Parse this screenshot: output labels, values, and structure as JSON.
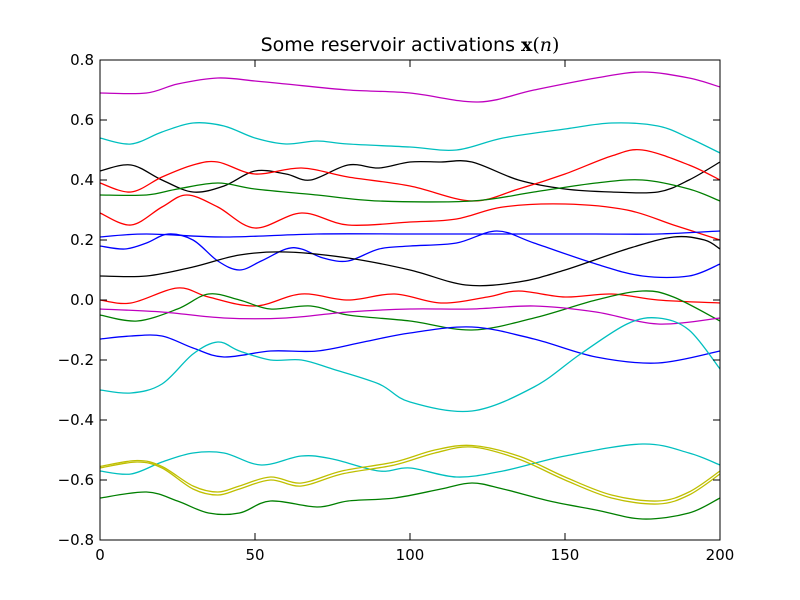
{
  "chart_data": {
    "type": "line",
    "title": "Some reservoir activations",
    "title_math": {
      "bold_var": "x",
      "open": "(",
      "arg": "n",
      "close": ")"
    },
    "xlabel": "",
    "ylabel": "",
    "xlim": [
      0,
      200
    ],
    "ylim": [
      -0.8,
      0.8
    ],
    "xticks": [
      0,
      50,
      100,
      150,
      200
    ],
    "yticks": [
      -0.8,
      -0.6,
      -0.4,
      -0.2,
      0.0,
      0.2,
      0.4,
      0.6,
      0.8
    ],
    "ytick_labels": [
      "−0.8",
      "−0.6",
      "−0.4",
      "−0.2",
      "0.0",
      "0.2",
      "0.4",
      "0.6",
      "0.8"
    ],
    "xtick_labels": [
      "0",
      "50",
      "100",
      "150",
      "200"
    ],
    "grid": false,
    "legend": "none",
    "series": [
      {
        "color": "#bf00bf",
        "points": [
          [
            0,
            0.69
          ],
          [
            15,
            0.69
          ],
          [
            25,
            0.72
          ],
          [
            38,
            0.74
          ],
          [
            50,
            0.73
          ],
          [
            60,
            0.72
          ],
          [
            80,
            0.7
          ],
          [
            100,
            0.69
          ],
          [
            122,
            0.66
          ],
          [
            140,
            0.7
          ],
          [
            160,
            0.74
          ],
          [
            175,
            0.76
          ],
          [
            190,
            0.74
          ],
          [
            200,
            0.71
          ]
        ]
      },
      {
        "color": "#00bfbf",
        "points": [
          [
            0,
            0.54
          ],
          [
            10,
            0.52
          ],
          [
            20,
            0.56
          ],
          [
            30,
            0.59
          ],
          [
            40,
            0.58
          ],
          [
            50,
            0.54
          ],
          [
            60,
            0.52
          ],
          [
            70,
            0.53
          ],
          [
            80,
            0.52
          ],
          [
            100,
            0.51
          ],
          [
            115,
            0.5
          ],
          [
            130,
            0.54
          ],
          [
            150,
            0.57
          ],
          [
            165,
            0.59
          ],
          [
            180,
            0.58
          ],
          [
            190,
            0.54
          ],
          [
            200,
            0.49
          ]
        ]
      },
      {
        "color": "#000000",
        "points": [
          [
            0,
            0.43
          ],
          [
            10,
            0.45
          ],
          [
            20,
            0.4
          ],
          [
            30,
            0.36
          ],
          [
            40,
            0.38
          ],
          [
            50,
            0.43
          ],
          [
            60,
            0.42
          ],
          [
            68,
            0.4
          ],
          [
            80,
            0.45
          ],
          [
            90,
            0.44
          ],
          [
            100,
            0.46
          ],
          [
            110,
            0.46
          ],
          [
            120,
            0.46
          ],
          [
            135,
            0.4
          ],
          [
            150,
            0.37
          ],
          [
            165,
            0.36
          ],
          [
            180,
            0.36
          ],
          [
            190,
            0.4
          ],
          [
            200,
            0.46
          ]
        ]
      },
      {
        "color": "#ff0000",
        "points": [
          [
            0,
            0.39
          ],
          [
            10,
            0.36
          ],
          [
            20,
            0.41
          ],
          [
            30,
            0.45
          ],
          [
            38,
            0.46
          ],
          [
            50,
            0.42
          ],
          [
            65,
            0.44
          ],
          [
            80,
            0.41
          ],
          [
            100,
            0.38
          ],
          [
            120,
            0.33
          ],
          [
            135,
            0.37
          ],
          [
            150,
            0.42
          ],
          [
            165,
            0.48
          ],
          [
            175,
            0.5
          ],
          [
            190,
            0.45
          ],
          [
            200,
            0.4
          ]
        ]
      },
      {
        "color": "#007f00",
        "points": [
          [
            0,
            0.35
          ],
          [
            15,
            0.35
          ],
          [
            25,
            0.37
          ],
          [
            38,
            0.39
          ],
          [
            50,
            0.37
          ],
          [
            70,
            0.35
          ],
          [
            90,
            0.33
          ],
          [
            120,
            0.33
          ],
          [
            140,
            0.36
          ],
          [
            160,
            0.39
          ],
          [
            175,
            0.4
          ],
          [
            190,
            0.37
          ],
          [
            200,
            0.33
          ]
        ]
      },
      {
        "color": "#ff0000",
        "points": [
          [
            0,
            0.29
          ],
          [
            10,
            0.25
          ],
          [
            20,
            0.31
          ],
          [
            28,
            0.35
          ],
          [
            38,
            0.31
          ],
          [
            50,
            0.24
          ],
          [
            65,
            0.29
          ],
          [
            80,
            0.25
          ],
          [
            100,
            0.26
          ],
          [
            115,
            0.27
          ],
          [
            130,
            0.31
          ],
          [
            150,
            0.32
          ],
          [
            170,
            0.3
          ],
          [
            185,
            0.25
          ],
          [
            200,
            0.2
          ]
        ]
      },
      {
        "color": "#0000ff",
        "points": [
          [
            0,
            0.21
          ],
          [
            15,
            0.22
          ],
          [
            40,
            0.21
          ],
          [
            70,
            0.22
          ],
          [
            100,
            0.22
          ],
          [
            130,
            0.22
          ],
          [
            160,
            0.22
          ],
          [
            180,
            0.22
          ],
          [
            200,
            0.23
          ]
        ]
      },
      {
        "color": "#0000ff",
        "points": [
          [
            0,
            0.18
          ],
          [
            8,
            0.17
          ],
          [
            15,
            0.19
          ],
          [
            22,
            0.22
          ],
          [
            30,
            0.2
          ],
          [
            38,
            0.13
          ],
          [
            45,
            0.1
          ],
          [
            52,
            0.13
          ],
          [
            60,
            0.17
          ],
          [
            65,
            0.17
          ],
          [
            72,
            0.14
          ],
          [
            80,
            0.13
          ],
          [
            90,
            0.17
          ],
          [
            100,
            0.18
          ],
          [
            115,
            0.19
          ],
          [
            128,
            0.23
          ],
          [
            140,
            0.19
          ],
          [
            160,
            0.12
          ],
          [
            175,
            0.08
          ],
          [
            190,
            0.08
          ],
          [
            200,
            0.12
          ]
        ]
      },
      {
        "color": "#000000",
        "points": [
          [
            0,
            0.08
          ],
          [
            15,
            0.08
          ],
          [
            30,
            0.11
          ],
          [
            45,
            0.15
          ],
          [
            60,
            0.16
          ],
          [
            80,
            0.14
          ],
          [
            100,
            0.1
          ],
          [
            118,
            0.05
          ],
          [
            135,
            0.06
          ],
          [
            150,
            0.1
          ],
          [
            170,
            0.17
          ],
          [
            185,
            0.21
          ],
          [
            195,
            0.2
          ],
          [
            200,
            0.17
          ]
        ]
      },
      {
        "color": "#ff0000",
        "points": [
          [
            0,
            0.0
          ],
          [
            10,
            -0.01
          ],
          [
            25,
            0.04
          ],
          [
            35,
            0.01
          ],
          [
            50,
            -0.02
          ],
          [
            65,
            0.02
          ],
          [
            80,
            0.0
          ],
          [
            95,
            0.02
          ],
          [
            110,
            -0.01
          ],
          [
            125,
            0.01
          ],
          [
            135,
            0.03
          ],
          [
            150,
            0.01
          ],
          [
            165,
            0.02
          ],
          [
            180,
            0.0
          ],
          [
            200,
            -0.01
          ]
        ]
      },
      {
        "color": "#007f00",
        "points": [
          [
            0,
            -0.05
          ],
          [
            12,
            -0.07
          ],
          [
            25,
            -0.03
          ],
          [
            35,
            0.02
          ],
          [
            45,
            0.0
          ],
          [
            55,
            -0.03
          ],
          [
            68,
            -0.02
          ],
          [
            80,
            -0.05
          ],
          [
            100,
            -0.07
          ],
          [
            120,
            -0.1
          ],
          [
            140,
            -0.06
          ],
          [
            160,
            0.0
          ],
          [
            175,
            0.03
          ],
          [
            185,
            0.01
          ],
          [
            200,
            -0.07
          ]
        ]
      },
      {
        "color": "#bf00bf",
        "points": [
          [
            0,
            -0.03
          ],
          [
            20,
            -0.04
          ],
          [
            40,
            -0.06
          ],
          [
            60,
            -0.06
          ],
          [
            80,
            -0.04
          ],
          [
            100,
            -0.03
          ],
          [
            120,
            -0.03
          ],
          [
            140,
            -0.02
          ],
          [
            160,
            -0.04
          ],
          [
            180,
            -0.08
          ],
          [
            200,
            -0.06
          ]
        ]
      },
      {
        "color": "#0000ff",
        "points": [
          [
            0,
            -0.13
          ],
          [
            10,
            -0.12
          ],
          [
            20,
            -0.12
          ],
          [
            30,
            -0.16
          ],
          [
            40,
            -0.19
          ],
          [
            55,
            -0.17
          ],
          [
            70,
            -0.17
          ],
          [
            85,
            -0.14
          ],
          [
            100,
            -0.11
          ],
          [
            120,
            -0.09
          ],
          [
            140,
            -0.13
          ],
          [
            160,
            -0.19
          ],
          [
            180,
            -0.21
          ],
          [
            200,
            -0.17
          ]
        ]
      },
      {
        "color": "#00bfbf",
        "points": [
          [
            0,
            -0.3
          ],
          [
            10,
            -0.31
          ],
          [
            20,
            -0.28
          ],
          [
            30,
            -0.18
          ],
          [
            38,
            -0.14
          ],
          [
            45,
            -0.17
          ],
          [
            55,
            -0.2
          ],
          [
            65,
            -0.2
          ],
          [
            75,
            -0.23
          ],
          [
            90,
            -0.28
          ],
          [
            100,
            -0.34
          ],
          [
            120,
            -0.37
          ],
          [
            140,
            -0.29
          ],
          [
            155,
            -0.18
          ],
          [
            170,
            -0.08
          ],
          [
            180,
            -0.06
          ],
          [
            190,
            -0.1
          ],
          [
            200,
            -0.23
          ]
        ]
      },
      {
        "color": "#00bfbf",
        "points": [
          [
            0,
            -0.57
          ],
          [
            10,
            -0.58
          ],
          [
            20,
            -0.54
          ],
          [
            30,
            -0.51
          ],
          [
            40,
            -0.51
          ],
          [
            52,
            -0.55
          ],
          [
            65,
            -0.52
          ],
          [
            75,
            -0.53
          ],
          [
            90,
            -0.57
          ],
          [
            100,
            -0.56
          ],
          [
            115,
            -0.59
          ],
          [
            130,
            -0.57
          ],
          [
            150,
            -0.52
          ],
          [
            175,
            -0.48
          ],
          [
            190,
            -0.51
          ],
          [
            200,
            -0.55
          ]
        ]
      },
      {
        "color": "#bfbf00",
        "points": [
          [
            0,
            -0.56
          ],
          [
            12,
            -0.54
          ],
          [
            20,
            -0.56
          ],
          [
            30,
            -0.63
          ],
          [
            38,
            -0.65
          ],
          [
            45,
            -0.63
          ],
          [
            55,
            -0.6
          ],
          [
            65,
            -0.62
          ],
          [
            78,
            -0.58
          ],
          [
            95,
            -0.55
          ],
          [
            108,
            -0.51
          ],
          [
            120,
            -0.49
          ],
          [
            135,
            -0.53
          ],
          [
            150,
            -0.6
          ],
          [
            165,
            -0.66
          ],
          [
            180,
            -0.68
          ],
          [
            190,
            -0.65
          ],
          [
            200,
            -0.58
          ]
        ]
      },
      {
        "color": "#bfbf00",
        "points": [
          [
            0,
            -0.555
          ],
          [
            12,
            -0.535
          ],
          [
            20,
            -0.555
          ],
          [
            30,
            -0.62
          ],
          [
            38,
            -0.64
          ],
          [
            45,
            -0.62
          ],
          [
            55,
            -0.59
          ],
          [
            65,
            -0.61
          ],
          [
            78,
            -0.57
          ],
          [
            95,
            -0.54
          ],
          [
            108,
            -0.5
          ],
          [
            120,
            -0.485
          ],
          [
            135,
            -0.52
          ],
          [
            150,
            -0.59
          ],
          [
            165,
            -0.65
          ],
          [
            180,
            -0.67
          ],
          [
            190,
            -0.64
          ],
          [
            200,
            -0.57
          ]
        ]
      },
      {
        "color": "#007f00",
        "points": [
          [
            0,
            -0.66
          ],
          [
            15,
            -0.64
          ],
          [
            25,
            -0.67
          ],
          [
            35,
            -0.71
          ],
          [
            45,
            -0.71
          ],
          [
            55,
            -0.67
          ],
          [
            70,
            -0.69
          ],
          [
            80,
            -0.67
          ],
          [
            95,
            -0.66
          ],
          [
            110,
            -0.63
          ],
          [
            120,
            -0.61
          ],
          [
            130,
            -0.63
          ],
          [
            145,
            -0.67
          ],
          [
            160,
            -0.7
          ],
          [
            175,
            -0.73
          ],
          [
            190,
            -0.71
          ],
          [
            200,
            -0.66
          ]
        ]
      }
    ]
  }
}
